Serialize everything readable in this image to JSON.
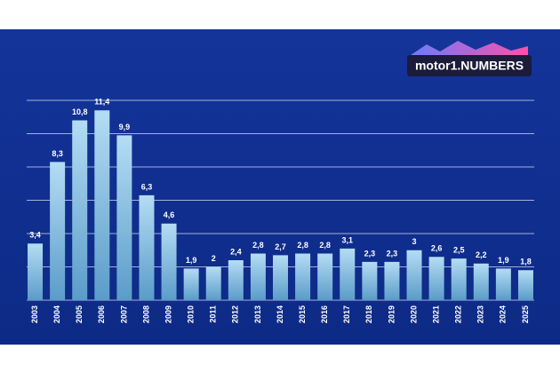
{
  "logo": "motor1.NUMBERS",
  "chart_data": {
    "type": "bar",
    "categories": [
      "2003",
      "2004",
      "2005",
      "2006",
      "2007",
      "2008",
      "2009",
      "2010",
      "2011",
      "2012",
      "2013",
      "2014",
      "2015",
      "2016",
      "2017",
      "2018",
      "2019",
      "2020",
      "2021",
      "2022",
      "2023",
      "2024",
      "2025"
    ],
    "values": [
      3.4,
      8.3,
      10.8,
      11.4,
      9.9,
      6.3,
      4.6,
      1.9,
      2,
      2.4,
      2.8,
      2.7,
      2.8,
      2.8,
      3.1,
      2.3,
      2.3,
      3,
      2.6,
      2.5,
      2.2,
      1.9,
      1.8
    ],
    "value_labels": [
      "3,4",
      "8,3",
      "10,8",
      "11,4",
      "9,9",
      "6,3",
      "4,6",
      "1,9",
      "2",
      "2,4",
      "2,8",
      "2,7",
      "2,8",
      "2,8",
      "3,1",
      "2,3",
      "2,3",
      "3",
      "2,6",
      "2,5",
      "2,2",
      "1,9",
      "1,8"
    ],
    "color": "#8cc3e8",
    "ylim": [
      0,
      12
    ],
    "yticks": [
      0,
      2,
      4,
      6,
      8,
      10,
      12
    ],
    "grid": true
  }
}
